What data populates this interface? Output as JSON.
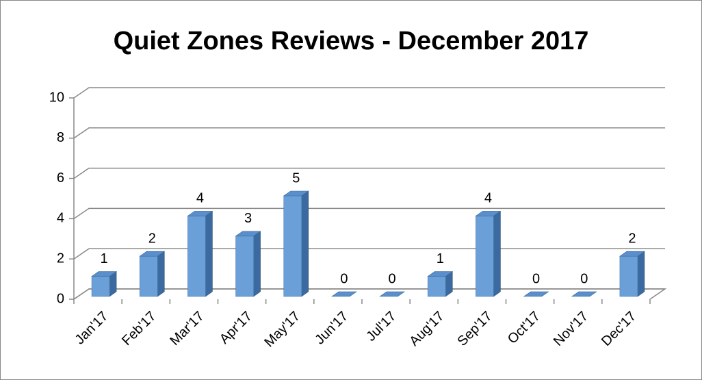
{
  "chart_data": {
    "type": "bar3d",
    "title": "Quiet Zones Reviews - December 2017",
    "categories": [
      "Jan'17",
      "Feb'17",
      "Mar'17",
      "Apr'17",
      "May'17",
      "Jun'17",
      "Jul'17",
      "Aug'17",
      "Sep'17",
      "Oct'17",
      "Nov'17",
      "Dec'17"
    ],
    "values": [
      1,
      2,
      4,
      3,
      5,
      0,
      0,
      1,
      4,
      0,
      0,
      2
    ],
    "color": "#6a9fd8",
    "ylim": [
      0,
      10
    ],
    "yticks": [
      0,
      2,
      4,
      6,
      8,
      10
    ],
    "grid": true
  }
}
